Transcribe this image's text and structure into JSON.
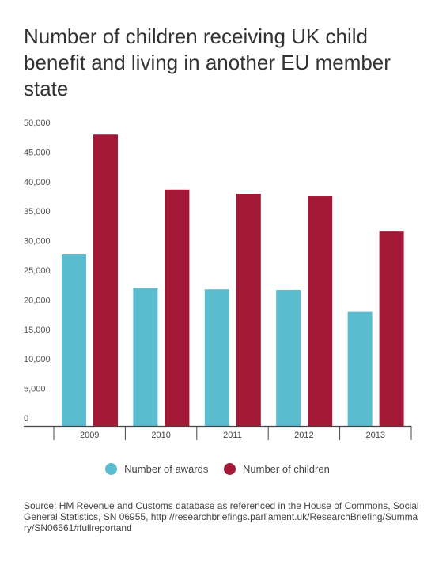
{
  "title": "Number of children receiving UK child benefit and living in another EU member state",
  "chart_data": {
    "type": "bar",
    "categories": [
      "2009",
      "2010",
      "2011",
      "2012",
      "2013"
    ],
    "series": [
      {
        "name": "Number of awards",
        "color": "#5bbccf",
        "values": [
          29000,
          23300,
          23100,
          23000,
          19300
        ]
      },
      {
        "name": "Number of children",
        "color": "#a31837",
        "values": [
          49300,
          40000,
          39300,
          38900,
          33000
        ]
      }
    ],
    "yticks": [
      "0",
      "5,000",
      "10,000",
      "15,000",
      "20,000",
      "25,000",
      "30,000",
      "35,000",
      "40,000",
      "45,000",
      "50,000"
    ],
    "ylim": [
      0,
      50000
    ],
    "grid": false,
    "legend_position": "bottom"
  },
  "source": "Source: HM Revenue and Customs database as referenced in the House of Commons, Social General Statistics, SN 06955, http://researchbriefings.parliament.uk/ResearchBriefing/Summary/SN06561#fullreportand"
}
